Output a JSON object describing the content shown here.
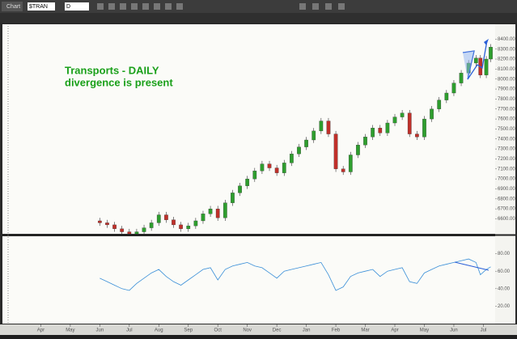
{
  "toolbar": {
    "tab": "Chart",
    "symbol": "$TRAN",
    "period": "D"
  },
  "chart_data": [
    {
      "type": "candlestick",
      "annotations": [
        "Transports - DAILY",
        "divergence is present"
      ],
      "annotation_color": "#1aa01a",
      "up_color": "#2e9e2e",
      "down_color": "#c0302a",
      "x": [
        2.0,
        2.25,
        2.5,
        2.75,
        3.0,
        3.25,
        3.5,
        3.75,
        4.0,
        4.25,
        4.5,
        4.75,
        5.0,
        5.25,
        5.5,
        5.75,
        6.0,
        6.25,
        6.5,
        6.75,
        7.0,
        7.25,
        7.5,
        7.75,
        8.0,
        8.25,
        8.5,
        8.75,
        9.0,
        9.25,
        9.5,
        9.75,
        10.0,
        10.25,
        10.5,
        10.75,
        11.0,
        11.25,
        11.5,
        11.75,
        12.0,
        12.25,
        12.5,
        12.75,
        13.0,
        13.25,
        13.5,
        13.75,
        14.0,
        14.25,
        14.5,
        14.75,
        14.9,
        15.1,
        15.25
      ],
      "open": [
        6580,
        6560,
        6540,
        6500,
        6470,
        6430,
        6470,
        6510,
        6560,
        6640,
        6590,
        6540,
        6500,
        6530,
        6580,
        6650,
        6700,
        6610,
        6760,
        6860,
        6930,
        7000,
        7080,
        7150,
        7110,
        7060,
        7160,
        7250,
        7320,
        7390,
        7480,
        7580,
        7450,
        7100,
        7070,
        7240,
        7340,
        7420,
        7510,
        7460,
        7560,
        7620,
        7660,
        7450,
        7420,
        7600,
        7700,
        7790,
        7860,
        7960,
        8060,
        8160,
        8210,
        8040,
        8200
      ],
      "high": [
        6610,
        6590,
        6570,
        6530,
        6500,
        6500,
        6540,
        6590,
        6670,
        6670,
        6620,
        6570,
        6560,
        6610,
        6680,
        6730,
        6730,
        6790,
        6890,
        6960,
        7030,
        7110,
        7180,
        7180,
        7140,
        7190,
        7280,
        7350,
        7420,
        7510,
        7610,
        7610,
        7480,
        7130,
        7270,
        7370,
        7450,
        7540,
        7540,
        7590,
        7650,
        7690,
        7690,
        7480,
        7630,
        7730,
        7820,
        7890,
        7990,
        8090,
        8190,
        8240,
        8240,
        8230,
        8350
      ],
      "low": [
        6530,
        6510,
        6470,
        6440,
        6400,
        6400,
        6440,
        6480,
        6530,
        6560,
        6510,
        6470,
        6470,
        6500,
        6550,
        6620,
        6580,
        6580,
        6730,
        6830,
        6900,
        6970,
        7050,
        7080,
        7030,
        7030,
        7130,
        7220,
        7290,
        7360,
        7450,
        7420,
        7070,
        7040,
        7040,
        7210,
        7310,
        7390,
        7430,
        7430,
        7530,
        7590,
        7420,
        7390,
        7390,
        7570,
        7670,
        7760,
        7830,
        7930,
        8030,
        8130,
        8010,
        8010,
        8170
      ],
      "close": [
        6560,
        6540,
        6500,
        6470,
        6430,
        6470,
        6510,
        6560,
        6640,
        6590,
        6540,
        6500,
        6530,
        6580,
        6650,
        6700,
        6610,
        6760,
        6860,
        6930,
        7000,
        7080,
        7150,
        7110,
        7060,
        7160,
        7250,
        7320,
        7390,
        7480,
        7580,
        7450,
        7100,
        7070,
        7240,
        7340,
        7420,
        7510,
        7460,
        7560,
        7620,
        7660,
        7450,
        7420,
        7600,
        7700,
        7790,
        7860,
        7960,
        8060,
        8160,
        8210,
        8040,
        8200,
        8320
      ],
      "xlim": [
        -1.3,
        15.4
      ],
      "ylim": [
        6450,
        8500
      ],
      "yticks": [
        {
          "value": 6600,
          "label": "6600.00"
        },
        {
          "value": 6700,
          "label": "6700.00"
        },
        {
          "value": 6800,
          "label": "6800.00"
        },
        {
          "value": 6900,
          "label": "6900.00"
        },
        {
          "value": 7000,
          "label": "7000.00"
        },
        {
          "value": 7100,
          "label": "7100.00"
        },
        {
          "value": 7200,
          "label": "7200.00"
        },
        {
          "value": 7300,
          "label": "7300.00"
        },
        {
          "value": 7400,
          "label": "7400.00"
        },
        {
          "value": 7500,
          "label": "7500.00"
        },
        {
          "value": 7600,
          "label": "7600.00"
        },
        {
          "value": 7700,
          "label": "7700.00"
        },
        {
          "value": 7800,
          "label": "7800.00"
        },
        {
          "value": 7900,
          "label": "7900.00"
        },
        {
          "value": 8000,
          "label": "8000.00"
        },
        {
          "value": 8100,
          "label": "8100.00"
        },
        {
          "value": 8200,
          "label": "8200.00"
        },
        {
          "value": 8300,
          "label": "8300.00"
        },
        {
          "value": 8400,
          "label": "8400.00"
        }
      ]
    },
    {
      "type": "line",
      "color": "#3a8fd8",
      "x": [
        2.0,
        2.25,
        2.5,
        2.75,
        3.0,
        3.25,
        3.5,
        3.75,
        4.0,
        4.25,
        4.5,
        4.75,
        5.0,
        5.25,
        5.5,
        5.75,
        6.0,
        6.25,
        6.5,
        6.75,
        7.0,
        7.25,
        7.5,
        7.75,
        8.0,
        8.25,
        8.5,
        8.75,
        9.0,
        9.25,
        9.5,
        9.75,
        10.0,
        10.25,
        10.5,
        10.75,
        11.0,
        11.25,
        11.5,
        11.75,
        12.0,
        12.25,
        12.5,
        12.75,
        13.0,
        13.25,
        13.5,
        13.75,
        14.0,
        14.25,
        14.5,
        14.75,
        14.9,
        15.1,
        15.25
      ],
      "values": [
        52,
        48,
        44,
        40,
        38,
        46,
        52,
        58,
        62,
        54,
        48,
        44,
        50,
        56,
        62,
        64,
        50,
        62,
        66,
        68,
        70,
        66,
        64,
        58,
        52,
        60,
        62,
        64,
        66,
        68,
        70,
        56,
        38,
        42,
        54,
        58,
        60,
        62,
        54,
        60,
        62,
        64,
        48,
        46,
        58,
        62,
        66,
        68,
        70,
        72,
        74,
        70,
        56,
        62,
        65
      ],
      "xlim": [
        -1.3,
        15.4
      ],
      "ylim": [
        0,
        100
      ],
      "yticks": [
        {
          "value": 20,
          "label": "20.00"
        },
        {
          "value": 40,
          "label": "40.00"
        },
        {
          "value": 60,
          "label": "60.00"
        },
        {
          "value": 80,
          "label": "80.00"
        }
      ],
      "xticks": [
        {
          "value": 0,
          "label": "Apr"
        },
        {
          "value": 1,
          "label": "May"
        },
        {
          "value": 2,
          "label": "Jun"
        },
        {
          "value": 3,
          "label": "Jul"
        },
        {
          "value": 4,
          "label": "Aug"
        },
        {
          "value": 5,
          "label": "Sep"
        },
        {
          "value": 6,
          "label": "Oct"
        },
        {
          "value": 7,
          "label": "Nov"
        },
        {
          "value": 8,
          "label": "Dec"
        },
        {
          "value": 9,
          "label": "Jan"
        },
        {
          "value": 10,
          "label": "Feb"
        },
        {
          "value": 11,
          "label": "Mar"
        },
        {
          "value": 12,
          "label": "Apr"
        },
        {
          "value": 13,
          "label": "May"
        },
        {
          "value": 14,
          "label": "Jun"
        },
        {
          "value": 15,
          "label": "Jul"
        }
      ]
    }
  ]
}
